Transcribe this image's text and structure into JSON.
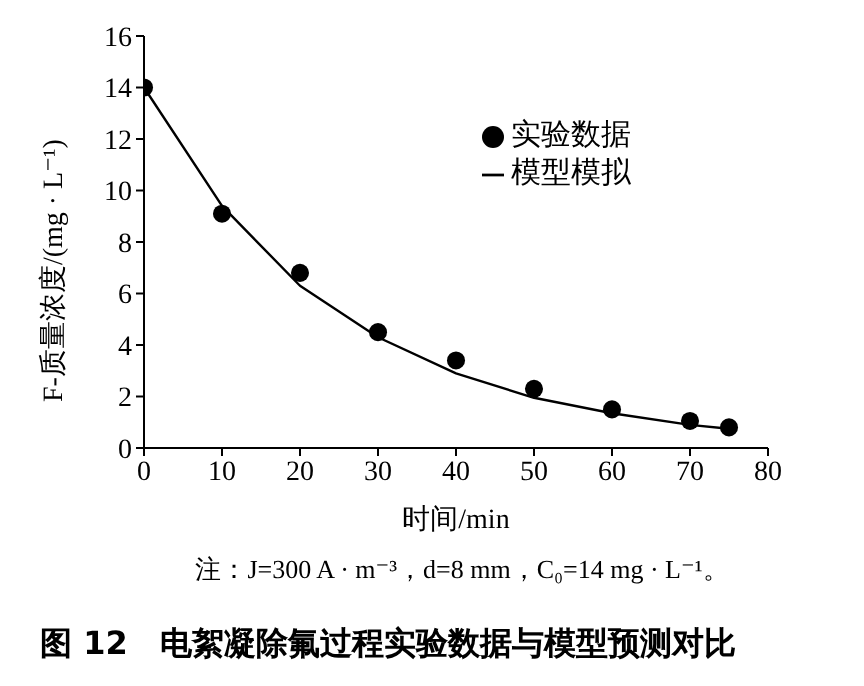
{
  "chart_data": {
    "type": "scatter",
    "title": "图 12　电絮凝除氟过程实验数据与模型预测对比",
    "xlabel": "时间/min",
    "ylabel": "F-质量浓度/(mg · L⁻¹)",
    "annotations": [
      "注：J=300 A · m⁻³，d=8 mm，C₀=14 mg · L⁻¹。"
    ],
    "x": [
      0,
      10,
      20,
      30,
      40,
      50,
      60,
      70,
      75
    ],
    "series": [
      {
        "name": "实验数据",
        "type": "scatter",
        "color": "#000000",
        "marker": "circle",
        "values": [
          14,
          9.1,
          6.8,
          4.5,
          3.4,
          2.3,
          1.5,
          1.05,
          0.8
        ]
      },
      {
        "name": "模型模拟",
        "type": "line",
        "color": "#000000",
        "marker": "none",
        "line_style": "solid",
        "values": [
          14,
          9.4,
          6.3,
          4.3,
          2.9,
          1.95,
          1.35,
          0.9,
          0.75
        ]
      }
    ],
    "xlim": [
      0,
      80
    ],
    "xticks": [
      0,
      10,
      20,
      30,
      40,
      50,
      60,
      70,
      80
    ],
    "ylim": [
      0,
      16
    ],
    "yticks": [
      0,
      2,
      4,
      6,
      8,
      10,
      12,
      14,
      16
    ],
    "grid": false,
    "legend": "top right"
  }
}
